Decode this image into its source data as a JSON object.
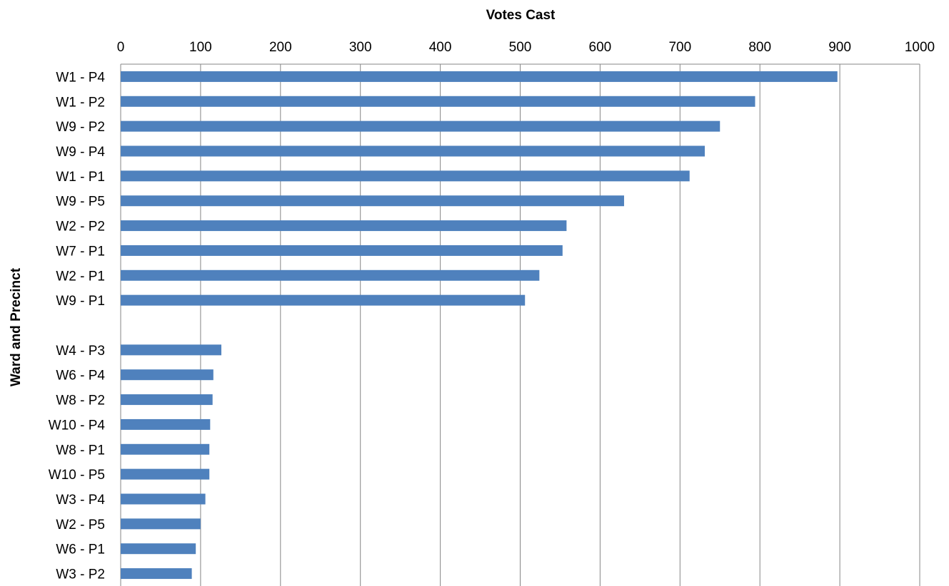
{
  "chart_data": {
    "type": "bar",
    "orientation": "horizontal",
    "xlabel": "Votes Cast",
    "ylabel": "Ward and Precinct",
    "xlim": [
      0,
      1000
    ],
    "x_ticks": [
      0,
      100,
      200,
      300,
      400,
      500,
      600,
      700,
      800,
      900,
      1000
    ],
    "x_axis_position": "top",
    "grid": true,
    "legend": "none",
    "bar_color": "#4F81BD",
    "categories": [
      "W1 - P4",
      "W1 - P2",
      "W9 - P2",
      "W9 - P4",
      "W1 - P1",
      "W9 - P5",
      "W2 - P2",
      "W7 - P1",
      "W2 - P1",
      "W9 - P1",
      "",
      "W4 - P3",
      "W6 - P4",
      "W8 - P2",
      "W10 - P4",
      "W8 - P1",
      "W10 - P5",
      "W3 - P4",
      "W2 - P5",
      "W6 - P1",
      "W3 - P2"
    ],
    "values": [
      897,
      794,
      750,
      731,
      712,
      630,
      558,
      553,
      524,
      506,
      null,
      126,
      116,
      115,
      112,
      111,
      111,
      106,
      100,
      94,
      89
    ]
  }
}
